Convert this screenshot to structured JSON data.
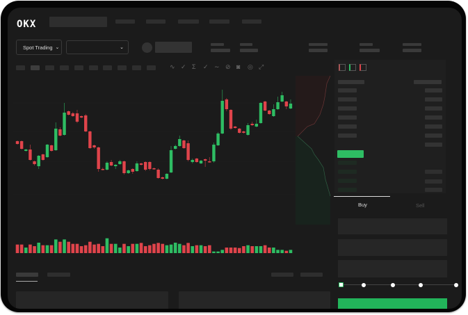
{
  "header": {
    "logo_text": "OKX"
  },
  "controls": {
    "market_type": "Spot Trading",
    "pair_selector_value": ""
  },
  "trade_form": {
    "tabs": [
      {
        "label": "Buy",
        "active": true
      },
      {
        "label": "Sell",
        "active": false
      }
    ],
    "slider_percent": 0,
    "slider_stops": 5
  },
  "colors": {
    "up": "#2ebd63",
    "down": "#e0444b",
    "buy_button": "#22b45a",
    "background": "#1b1b1b"
  },
  "icons": {
    "indicator_icons": [
      "wave-icon",
      "check-wave-icon",
      "formula-icon",
      "check-icon",
      "line-icon",
      "ruler-icon",
      "camera-icon",
      "target-icon",
      "expand-icon"
    ],
    "orderbook_views": [
      "both-sides-icon",
      "bids-only-icon",
      "asks-only-icon"
    ]
  },
  "chart": {
    "type": "candlestick",
    "candles": [
      [
        97,
        98,
        92,
        93
      ],
      [
        97,
        98,
        85,
        86
      ],
      [
        83,
        86,
        82,
        85
      ],
      [
        85,
        92,
        69,
        70
      ],
      [
        68,
        69,
        62,
        64
      ],
      [
        61,
        77,
        57,
        76
      ],
      [
        78,
        79,
        69,
        70
      ],
      [
        74,
        93,
        73,
        92
      ],
      [
        91,
        92,
        82,
        83
      ],
      [
        84,
        124,
        83,
        115
      ],
      [
        114,
        117,
        104,
        105
      ],
      [
        106,
        152,
        105,
        138
      ],
      [
        140,
        141,
        134,
        135
      ],
      [
        137,
        139,
        132,
        133
      ],
      [
        137,
        142,
        123,
        125
      ],
      [
        133,
        134,
        130,
        131
      ],
      [
        134,
        136,
        110,
        111
      ],
      [
        111,
        112,
        86,
        87
      ],
      [
        91,
        92,
        86,
        88
      ],
      [
        88,
        89,
        53,
        57
      ],
      [
        57,
        59,
        55,
        56
      ],
      [
        56,
        68,
        55,
        66
      ],
      [
        67,
        70,
        61,
        62
      ],
      [
        61,
        64,
        57,
        63
      ],
      [
        64,
        70,
        63,
        68
      ],
      [
        68,
        69,
        49,
        51
      ],
      [
        51,
        56,
        50,
        55
      ],
      [
        57,
        58,
        50,
        53
      ],
      [
        54,
        68,
        53,
        65
      ],
      [
        65,
        66,
        62,
        63
      ],
      [
        67,
        68,
        54,
        56
      ],
      [
        67,
        68,
        55,
        57
      ],
      [
        58,
        59,
        56,
        57
      ],
      [
        56,
        58,
        43,
        44
      ],
      [
        45,
        46,
        42,
        43
      ],
      [
        43,
        51,
        42,
        50
      ],
      [
        52,
        90,
        51,
        84
      ],
      [
        86,
        92,
        85,
        90
      ],
      [
        90,
        105,
        89,
        100
      ],
      [
        98,
        99,
        86,
        87
      ],
      [
        94,
        98,
        68,
        70
      ],
      [
        67,
        72,
        65,
        70
      ],
      [
        72,
        73,
        66,
        67
      ],
      [
        65,
        70,
        64,
        69
      ],
      [
        71,
        72,
        60,
        69
      ],
      [
        68,
        74,
        66,
        67
      ],
      [
        68,
        95,
        66,
        92
      ],
      [
        91,
        110,
        90,
        108
      ],
      [
        108,
        171,
        107,
        155
      ],
      [
        157,
        159,
        140,
        143
      ],
      [
        142,
        143,
        113,
        115
      ],
      [
        118,
        119,
        115,
        116
      ],
      [
        115,
        116,
        108,
        109
      ],
      [
        111,
        112,
        108,
        109
      ],
      [
        106,
        123,
        105,
        120
      ],
      [
        122,
        125,
        119,
        120
      ],
      [
        118,
        128,
        117,
        122
      ],
      [
        123,
        153,
        122,
        152
      ],
      [
        154,
        155,
        140,
        141
      ],
      [
        141,
        142,
        135,
        136
      ],
      [
        133,
        150,
        132,
        143
      ],
      [
        143,
        161,
        142,
        153
      ],
      [
        154,
        168,
        153,
        163
      ],
      [
        154,
        155,
        143,
        147
      ],
      [
        144,
        157,
        143,
        151
      ]
    ],
    "volumes": [
      37,
      37,
      24,
      37,
      30,
      45,
      34,
      34,
      34,
      59,
      49,
      59,
      49,
      40,
      40,
      30,
      34,
      49,
      37,
      40,
      30,
      64,
      40,
      40,
      24,
      40,
      30,
      40,
      40,
      44,
      30,
      34,
      40,
      44,
      40,
      34,
      37,
      45,
      40,
      34,
      44,
      30,
      34,
      34,
      30,
      34,
      7,
      7,
      14,
      24,
      24,
      24,
      22,
      30,
      34,
      30,
      30,
      30,
      34,
      24,
      24,
      14,
      14,
      10,
      14
    ]
  }
}
